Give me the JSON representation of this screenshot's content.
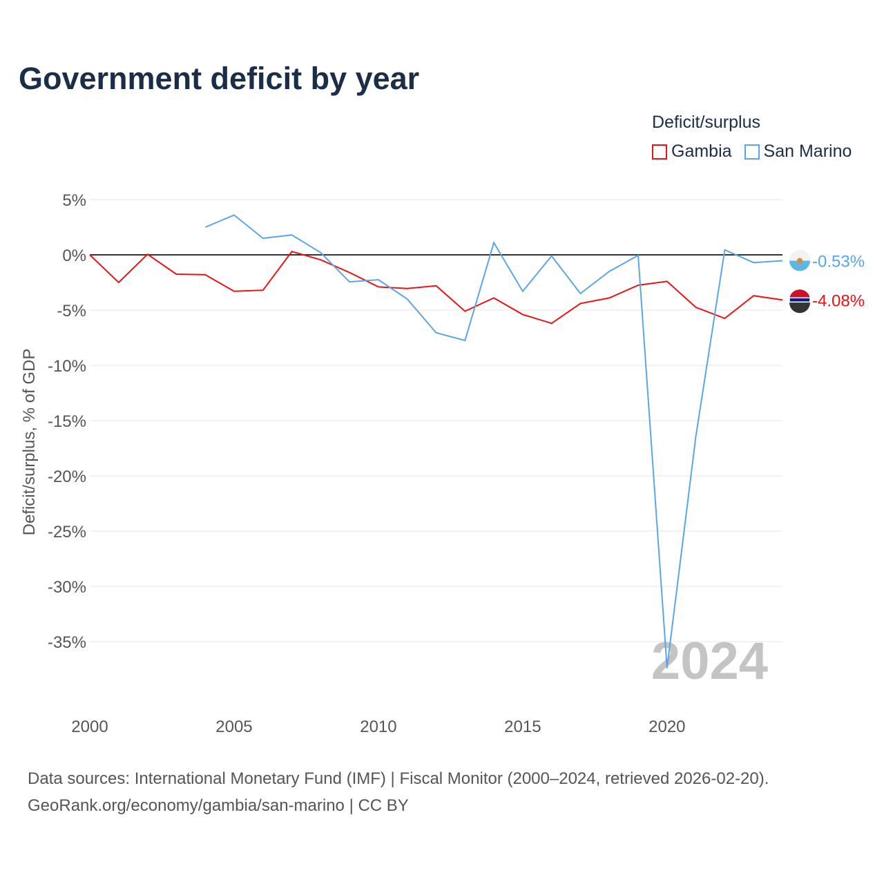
{
  "title": "Government deficit by year",
  "legend": {
    "title": "Deficit/surplus",
    "items": [
      {
        "label": "Gambia",
        "color": "#ee1111"
      },
      {
        "label": "San Marino",
        "color": "#5aa5ea"
      }
    ]
  },
  "source_line1": "Data sources: International Monetary Fund (IMF) | Fiscal Monitor (2000–2024, retrieved 2026-02-20).",
  "source_line2": "GeoRank.org/economy/gambia/san-marino | CC BY",
  "chart_data": {
    "type": "line",
    "title": "Government deficit by year",
    "xlabel": "",
    "ylabel": "Deficit/surplus, % of GDP",
    "xlim": [
      2000,
      2024
    ],
    "ylim": [
      -40,
      5
    ],
    "grid": true,
    "legend_position": "top-right",
    "year_watermark": "2024",
    "x_ticks": [
      2000,
      2005,
      2010,
      2015,
      2020
    ],
    "x_tick_labels": [
      "2000",
      "2005",
      "2010",
      "2015",
      "2020"
    ],
    "y_ticks": [
      5,
      0,
      -5,
      -10,
      -15,
      -20,
      -25,
      -30,
      -35
    ],
    "y_tick_labels": [
      "5%",
      "0%",
      "-5%",
      "-10%",
      "-15%",
      "-20%",
      "-25%",
      "-30%",
      "-35%"
    ],
    "series": [
      {
        "name": "Gambia",
        "color": "#ee1111",
        "end_label": "-4.08%",
        "x": [
          2000,
          2001,
          2002,
          2003,
          2004,
          2005,
          2006,
          2007,
          2008,
          2009,
          2010,
          2011,
          2012,
          2013,
          2014,
          2015,
          2016,
          2017,
          2018,
          2019,
          2020,
          2021,
          2022,
          2023,
          2024
        ],
        "values": [
          0,
          -2.5,
          0.05,
          -1.75,
          -1.8,
          -3.3,
          -3.2,
          0.3,
          -0.45,
          -1.6,
          -2.9,
          -3.05,
          -2.8,
          -5.1,
          -3.9,
          -5.4,
          -6.2,
          -4.4,
          -3.9,
          -2.75,
          -2.4,
          -4.75,
          -5.75,
          -3.7,
          -4.08
        ]
      },
      {
        "name": "San Marino",
        "color": "#5aa5ea",
        "end_label": "-0.53%",
        "x": [
          2004,
          2005,
          2006,
          2007,
          2008,
          2009,
          2010,
          2011,
          2012,
          2013,
          2014,
          2015,
          2016,
          2017,
          2018,
          2019,
          2020,
          2021,
          2022,
          2023,
          2024
        ],
        "values": [
          2.5,
          3.6,
          1.5,
          1.8,
          0.2,
          -2.45,
          -2.25,
          -4.0,
          -7.05,
          -7.75,
          1.1,
          -3.3,
          -0.1,
          -3.5,
          -1.5,
          -0.05,
          -37.4,
          -16.4,
          0.45,
          -0.7,
          -0.53
        ]
      }
    ]
  }
}
